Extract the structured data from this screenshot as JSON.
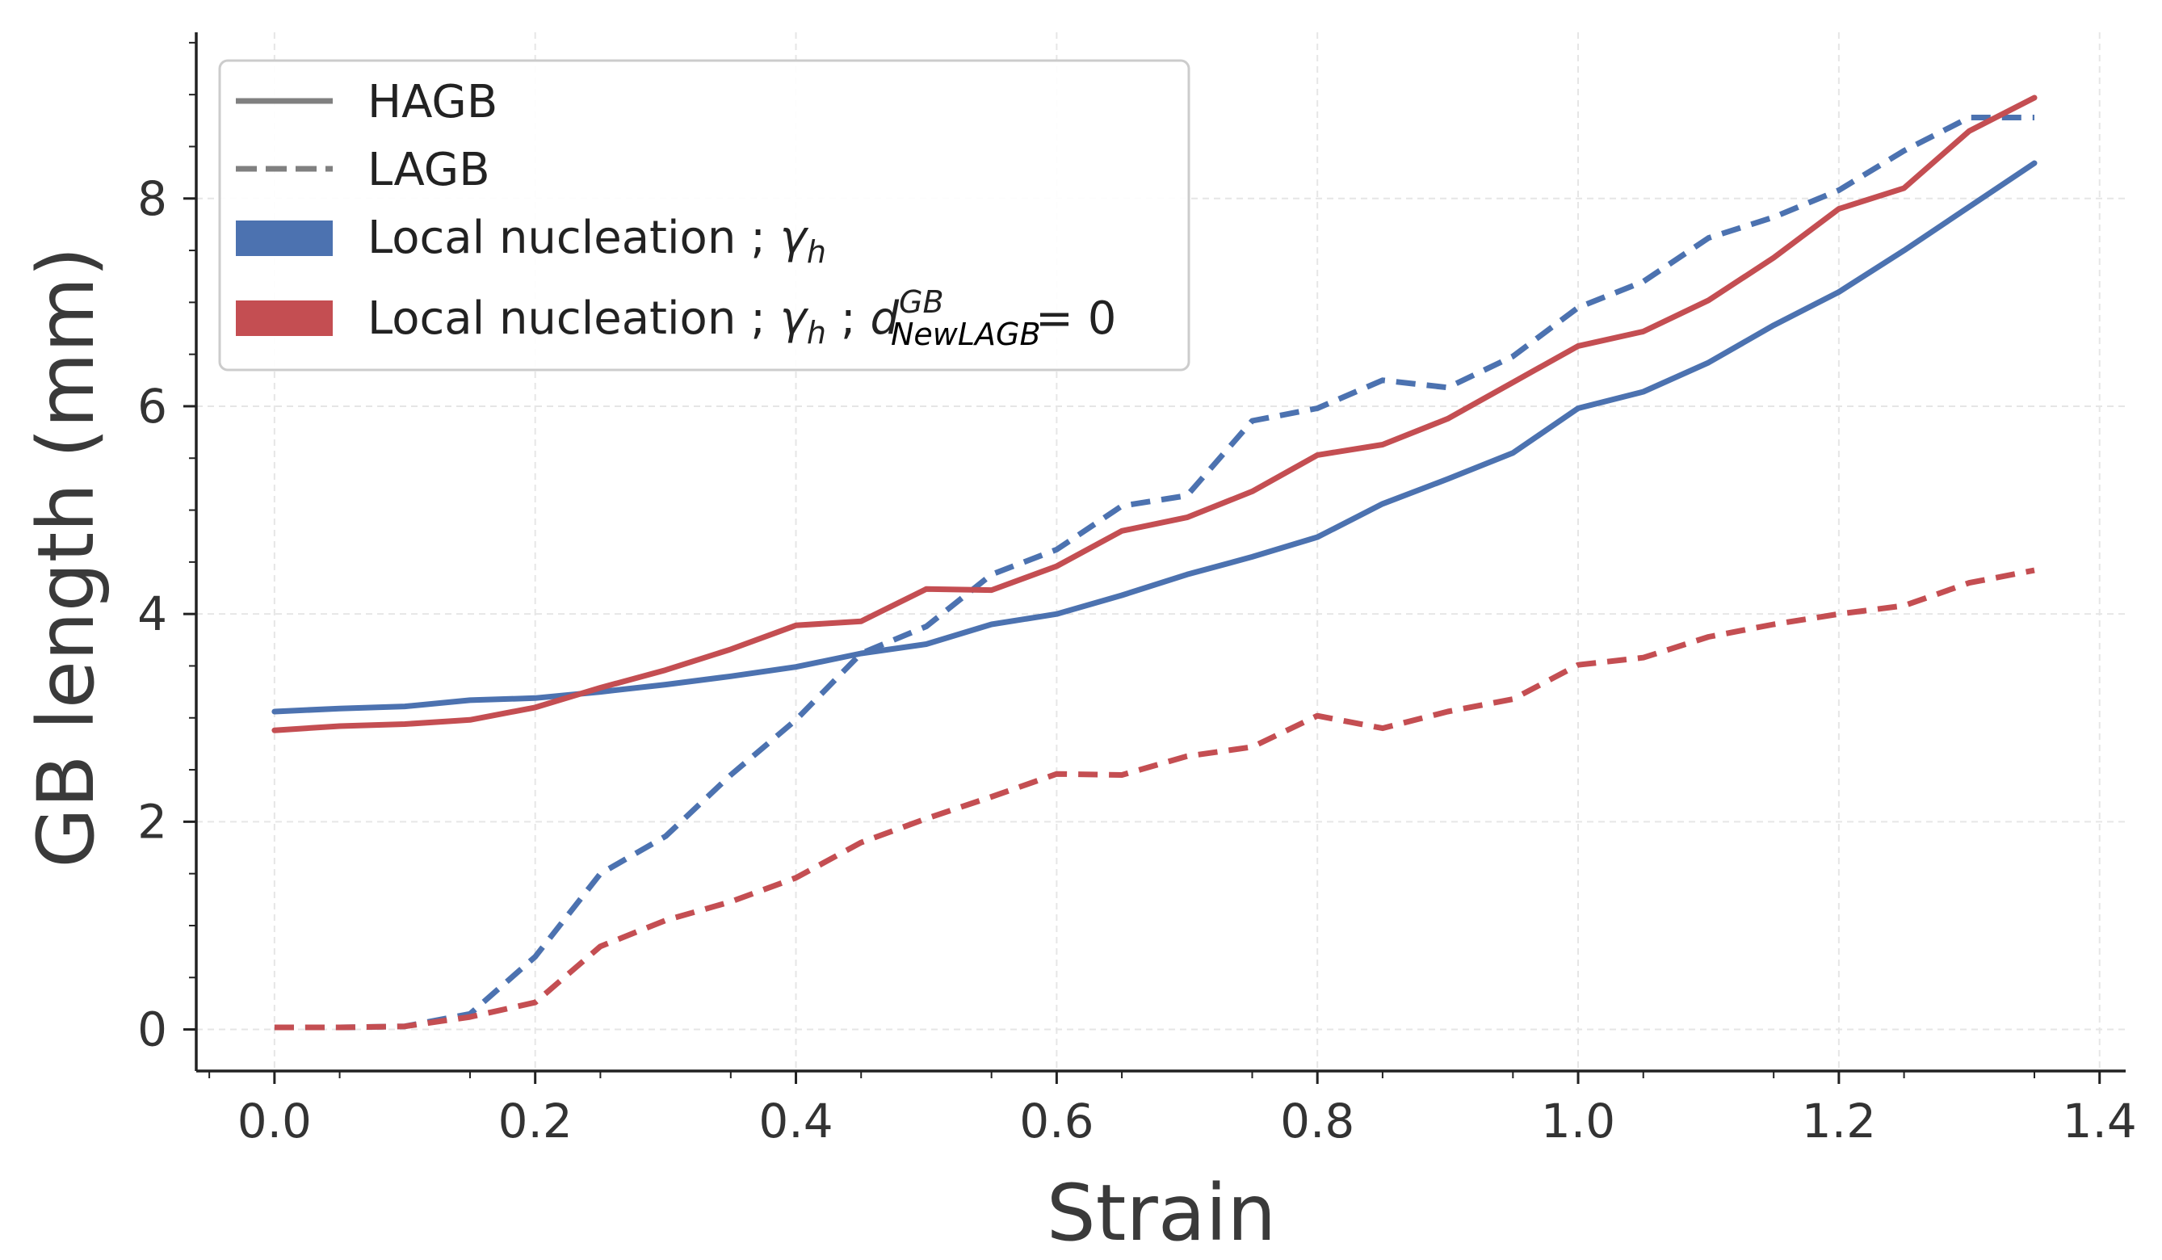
{
  "chart_data": {
    "type": "line",
    "xlabel": "Strain",
    "ylabel": "GB length (mm)",
    "xlim": [
      -0.06,
      1.42
    ],
    "ylim": [
      -0.4,
      9.6
    ],
    "xticks": [
      "0.0",
      "0.2",
      "0.4",
      "0.6",
      "0.8",
      "1.0",
      "1.2",
      "1.4"
    ],
    "xtick_values": [
      0.0,
      0.2,
      0.4,
      0.6,
      0.8,
      1.0,
      1.2,
      1.4
    ],
    "yticks": [
      "0",
      "2",
      "4",
      "6",
      "8"
    ],
    "ytick_values": [
      0,
      2,
      4,
      6,
      8
    ],
    "grid": true,
    "legend_position": "top-left",
    "legend": {
      "hagb": "HAGB",
      "lagb": "LAGB",
      "blue_prefix": "Local nucleation ; ",
      "gamma": "γ",
      "h": "h",
      "red_prefix": "Local nucleation ; ",
      "red_mid": " ; ",
      "d": "d",
      "sup": "GB",
      "sub": "NewLAGB",
      "eq": " = 0"
    },
    "x": [
      0.0,
      0.05,
      0.1,
      0.15,
      0.2,
      0.25,
      0.3,
      0.35,
      0.4,
      0.45,
      0.5,
      0.55,
      0.6,
      0.65,
      0.7,
      0.75,
      0.8,
      0.85,
      0.9,
      0.95,
      1.0,
      1.05,
      1.1,
      1.15,
      1.2,
      1.25,
      1.3,
      1.35
    ],
    "series": [
      {
        "name": "Local nucleation ; γh — HAGB",
        "color": "#4c72b0",
        "style": "solid",
        "values": [
          3.06,
          3.09,
          3.11,
          3.17,
          3.19,
          3.25,
          3.32,
          3.4,
          3.49,
          3.62,
          3.71,
          3.9,
          4.0,
          4.18,
          4.38,
          4.55,
          4.74,
          5.06,
          5.3,
          5.55,
          5.98,
          6.14,
          6.42,
          6.78,
          7.1,
          7.5,
          7.92,
          8.34
        ]
      },
      {
        "name": "Local nucleation ; γh — LAGB",
        "color": "#4c72b0",
        "style": "dashed",
        "values": [
          0.02,
          0.02,
          0.03,
          0.15,
          0.7,
          1.5,
          1.86,
          2.45,
          2.98,
          3.62,
          3.88,
          4.38,
          4.62,
          5.04,
          5.14,
          5.86,
          5.98,
          6.25,
          6.18,
          6.48,
          6.95,
          7.2,
          7.62,
          7.82,
          8.08,
          8.46,
          8.78,
          8.78
        ]
      },
      {
        "name": "Local nucleation ; γh ; d_NewLAGB^GB = 0 — HAGB",
        "color": "#c44e52",
        "style": "solid",
        "values": [
          2.88,
          2.92,
          2.94,
          2.98,
          3.1,
          3.29,
          3.46,
          3.66,
          3.89,
          3.93,
          4.24,
          4.23,
          4.46,
          4.8,
          4.93,
          5.18,
          5.53,
          5.63,
          5.88,
          6.23,
          6.58,
          6.72,
          7.02,
          7.43,
          7.9,
          8.1,
          8.65,
          8.97
        ]
      },
      {
        "name": "Local nucleation ; γh ; d_NewLAGB^GB = 0 — LAGB",
        "color": "#c44e52",
        "style": "dashed",
        "values": [
          0.02,
          0.02,
          0.03,
          0.12,
          0.26,
          0.8,
          1.05,
          1.23,
          1.46,
          1.8,
          2.03,
          2.24,
          2.46,
          2.45,
          2.63,
          2.72,
          3.02,
          2.9,
          3.06,
          3.18,
          3.51,
          3.58,
          3.78,
          3.9,
          4.0,
          4.08,
          4.3,
          4.42
        ]
      }
    ]
  }
}
